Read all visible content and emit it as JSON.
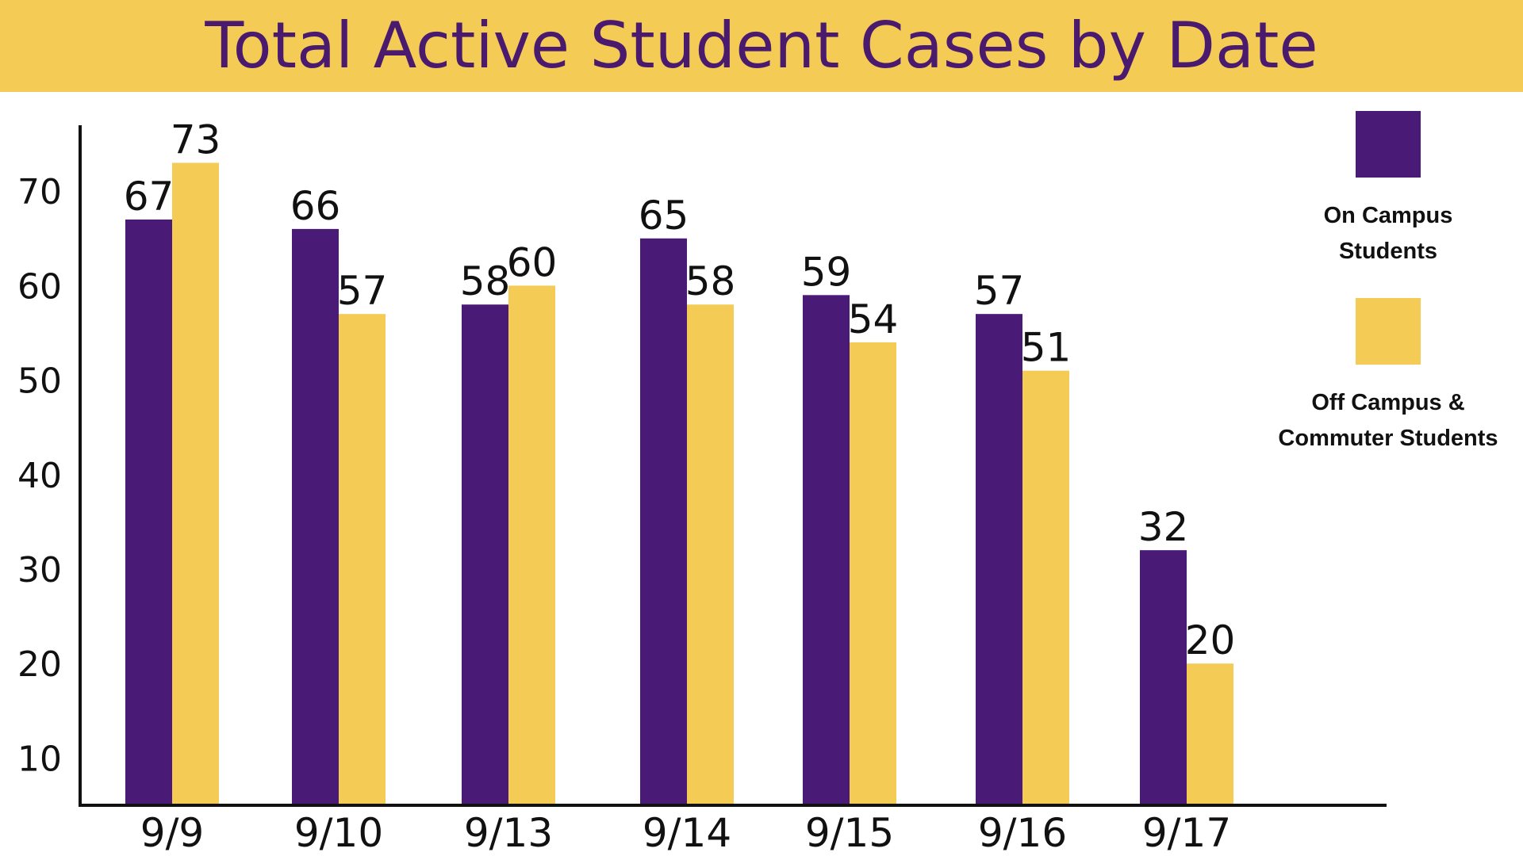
{
  "colors": {
    "banner": "#F3CB55",
    "title": "#4A1A6E",
    "on_campus": "#4A1A77",
    "off_campus": "#F3CB55",
    "axis": "#111111"
  },
  "chart_data": {
    "type": "bar",
    "title": "Total Active Student Cases by Date",
    "xlabel": "",
    "ylabel": "",
    "categories": [
      "9/9",
      "9/10",
      "9/13",
      "9/14",
      "9/15",
      "9/16",
      "9/17"
    ],
    "series": [
      {
        "name": "On Campus Students",
        "values": [
          67,
          66,
          58,
          65,
          59,
          57,
          32
        ]
      },
      {
        "name": "Off Campus & Commuter Students",
        "values": [
          73,
          57,
          60,
          58,
          54,
          51,
          20
        ]
      }
    ],
    "yticks": [
      10,
      20,
      30,
      40,
      50,
      60,
      70
    ],
    "ylim": [
      5,
      80
    ],
    "grid": false,
    "legend_position": "right",
    "data_labels": true
  },
  "legend": {
    "on_campus_line1": "On Campus",
    "on_campus_line2": "Students",
    "off_campus_line1": "Off Campus &",
    "off_campus_line2": "Commuter Students"
  }
}
